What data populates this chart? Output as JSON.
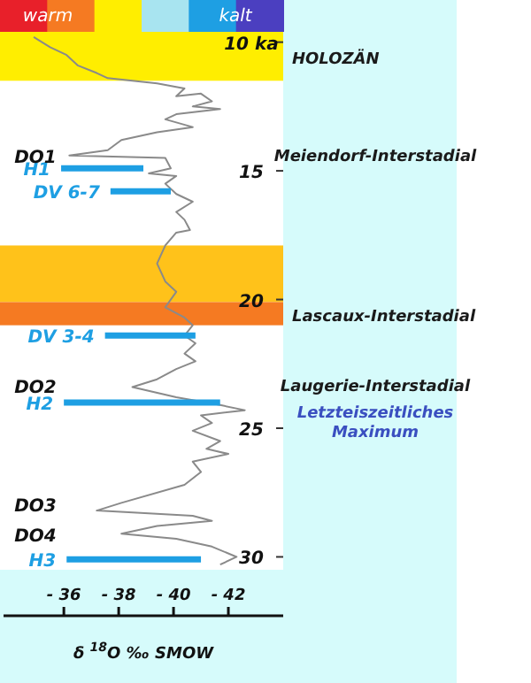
{
  "chart_data": {
    "type": "line",
    "xlabel": "δ $^{18}$O ‰ SMOW",
    "xlim": [
      -33.8,
      -44
    ],
    "xticks": [
      {
        "value": -36,
        "label": "- 36"
      },
      {
        "value": -38,
        "label": "- 38"
      },
      {
        "value": -40,
        "label": "- 40"
      },
      {
        "value": -42,
        "label": "- 42"
      }
    ],
    "ylim": [
      30.5,
      9.6
    ],
    "yticks": [
      {
        "value": 10,
        "label": "10 ka"
      },
      15,
      20,
      25,
      30
    ],
    "grid": false,
    "marker": "none",
    "line_style": "solid",
    "series": [
      {
        "color": "#8a8a8a",
        "x": [
          -34.9,
          -35.5,
          -36.1,
          -36.5,
          -37.2,
          -37.6,
          -39.4,
          -40.4,
          -40.1,
          -41.0,
          -41.4,
          -40.7,
          -41.7,
          -40.1,
          -39.7,
          -40.7,
          -39.4,
          -38.1,
          -37.6,
          -36.2,
          -39.7,
          -39.9,
          -39.1,
          -40.1,
          -39.7,
          -40.1,
          -40.7,
          -40.1,
          -40.4,
          -40.6,
          -40.1,
          -39.7,
          -39.4,
          -39.7,
          -40.1,
          -39.7,
          -40.4,
          -40.7,
          -40.4,
          -40.8,
          -40.4,
          -40.8,
          -40.1,
          -39.4,
          -38.5,
          -40.1,
          -41.7,
          -42.6,
          -41.0,
          -41.4,
          -40.7,
          -41.7,
          -41.2,
          -42.0,
          -40.7,
          -41.0,
          -40.4,
          -38.1,
          -37.2,
          -40.7,
          -41.4,
          -39.4,
          -38.1,
          -40.1,
          -41.4,
          -42.3,
          -41.7
        ],
        "values": [
          9.8,
          10.2,
          10.5,
          10.9,
          11.2,
          11.4,
          11.6,
          11.8,
          12.1,
          12.0,
          12.3,
          12.5,
          12.6,
          12.8,
          13.0,
          13.3,
          13.5,
          13.8,
          14.2,
          14.4,
          14.5,
          14.9,
          15.1,
          15.2,
          15.5,
          15.9,
          16.2,
          16.6,
          16.9,
          17.3,
          17.4,
          17.9,
          18.6,
          19.3,
          19.7,
          20.3,
          20.7,
          21.0,
          21.4,
          21.7,
          22.1,
          22.4,
          22.7,
          23.1,
          23.4,
          23.8,
          24.1,
          24.3,
          24.5,
          24.8,
          25.1,
          25.5,
          25.8,
          26.0,
          26.3,
          26.7,
          27.2,
          27.9,
          28.2,
          28.4,
          28.6,
          28.8,
          29.1,
          29.3,
          29.6,
          30.0,
          30.3
        ]
      },
      {
        "name": "H1",
        "color": "#1e9fe3",
        "x": [
          -35.9,
          -38.9
        ],
        "values": [
          14.9,
          14.9
        ]
      },
      {
        "name": "DV 6-7",
        "color": "#1e9fe3",
        "x": [
          -37.7,
          -39.9
        ],
        "values": [
          15.8,
          15.8
        ]
      },
      {
        "name": "DV 3-4",
        "color": "#1e9fe3",
        "x": [
          -37.5,
          -40.8
        ],
        "values": [
          21.4,
          21.4
        ]
      },
      {
        "name": "H2",
        "color": "#1e9fe3",
        "x": [
          -36.0,
          -41.7
        ],
        "values": [
          24.0,
          24.0
        ]
      },
      {
        "name": "H3",
        "color": "#1e9fe3",
        "x": [
          -36.1,
          -41.0
        ],
        "values": [
          30.1,
          30.1
        ]
      }
    ],
    "bands": [
      {
        "axis": "y",
        "from": 9.6,
        "to": 11.5,
        "color": "#ffee00",
        "label": "HOLOZÄN"
      },
      {
        "axis": "y",
        "from": 17.9,
        "to": 20.1,
        "color": "#ffc21a"
      },
      {
        "axis": "y",
        "from": 20.1,
        "to": 21.0,
        "color": "#f57a22",
        "label": "Lascaux-Interstadial"
      }
    ],
    "annotations": [
      "warm",
      "kalt",
      "DO1",
      "DO2",
      "DO3",
      "DO4",
      "Meiendorf-Interstadial",
      "Laugerie-Interstadial",
      "Letzteiszeitliches Maximum"
    ]
  }
}
